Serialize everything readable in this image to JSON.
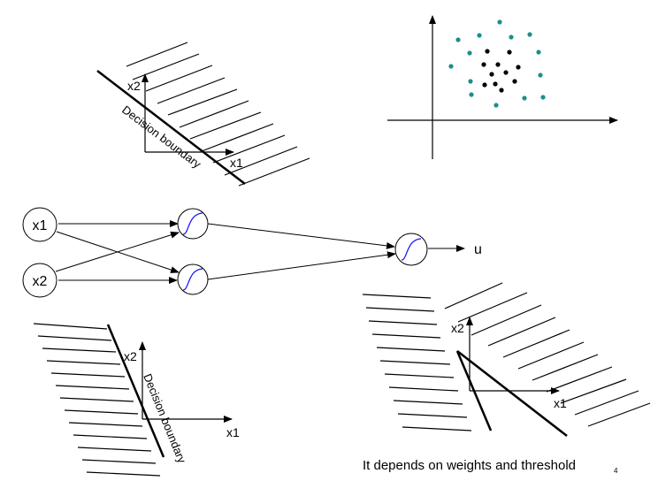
{
  "diagram": {
    "top_left": {
      "x_label": "x1",
      "y_label": "x2",
      "boundary_label": "Decision boundary"
    },
    "bottom_left": {
      "x_label": "x1",
      "y_label": "x2",
      "boundary_label": "Decision boundary"
    },
    "bottom_right": {
      "x_label": "x1",
      "y_label": "x2"
    },
    "network": {
      "inputs": [
        "x1",
        "x2"
      ],
      "output_label": "u"
    },
    "scatter": {
      "inner_color": "#000000",
      "outer_color": "#1a8f8a"
    },
    "caption": "It depends on weights and threshold",
    "page_number": "4",
    "colors": {
      "sigmoid_curve": "#1a1aff",
      "stroke": "#000000"
    }
  }
}
